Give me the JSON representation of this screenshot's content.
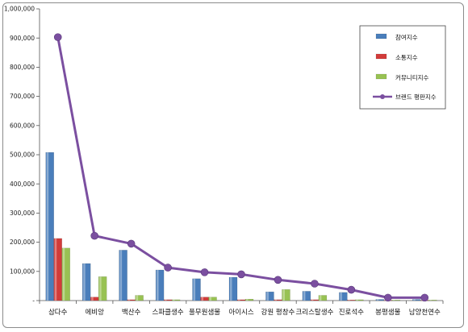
{
  "chart_data": {
    "type": "bar",
    "categories": [
      "삼다수",
      "에비앙",
      "백산수",
      "스파클생수",
      "풀무원샘물",
      "아이시스",
      "강원 평창수",
      "크리스탈생수",
      "진로석수",
      "봉평샘물",
      "남양천연수"
    ],
    "series": [
      {
        "name": "참여지수",
        "type": "bar",
        "color": "#4a7ebb",
        "values": [
          508000,
          127000,
          173000,
          105000,
          75000,
          80000,
          30000,
          32000,
          28000,
          4000,
          4000
        ]
      },
      {
        "name": "소통지수",
        "type": "bar",
        "color": "#d23c3a",
        "values": [
          213000,
          12000,
          3000,
          3000,
          12000,
          3000,
          3000,
          3000,
          2000,
          1000,
          1000
        ]
      },
      {
        "name": "커뮤니티지수",
        "type": "bar",
        "color": "#98c253",
        "values": [
          180000,
          82000,
          18000,
          3000,
          12000,
          5000,
          38000,
          18000,
          3000,
          2000,
          2000
        ]
      },
      {
        "name": "브랜드 평판지수",
        "type": "line",
        "color": "#7b4fa0",
        "values": [
          903000,
          222000,
          195000,
          113000,
          97000,
          90000,
          71000,
          58000,
          37000,
          10000,
          10000
        ]
      }
    ],
    "yticks": [
      "-",
      "100,000",
      "200,000",
      "300,000",
      "400,000",
      "500,000",
      "600,000",
      "700,000",
      "800,000",
      "900,000",
      "1,000,000"
    ],
    "ylim": [
      0,
      1000000
    ],
    "grid": false,
    "legend_position": "top-right"
  }
}
